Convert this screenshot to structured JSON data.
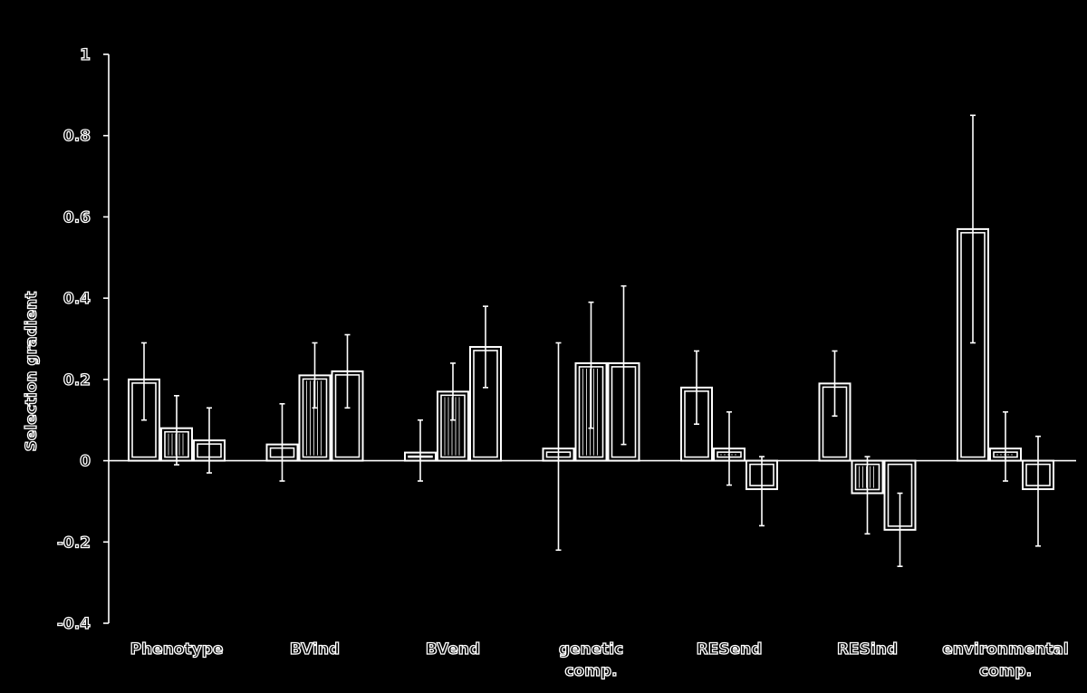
{
  "chart_data": {
    "type": "bar",
    "ylabel": "Selection gradient",
    "xlabel": "",
    "ylim": [
      -0.4,
      1
    ],
    "yticks": [
      "1",
      "0.8",
      "0.6",
      "0.4",
      "0.2",
      "0",
      "-0.2",
      "-0.4"
    ],
    "ytick_values": [
      1,
      0.8,
      0.6,
      0.4,
      0.2,
      0,
      -0.2,
      -0.4
    ],
    "categories": [
      [
        "Phenotype"
      ],
      [
        "BVind"
      ],
      [
        "BVend"
      ],
      [
        "genetic",
        "comp."
      ],
      [
        "RESend"
      ],
      [
        "RESind"
      ],
      [
        "environmental",
        "comp."
      ]
    ],
    "series": [
      {
        "values": [
          0.2,
          0.04,
          0.02,
          0.03,
          0.18,
          0.19,
          0.57
        ],
        "error_low": [
          0.1,
          -0.05,
          -0.05,
          -0.22,
          0.09,
          0.11,
          0.29
        ],
        "error_high": [
          0.29,
          0.14,
          0.1,
          0.29,
          0.27,
          0.27,
          0.85
        ]
      },
      {
        "values": [
          0.08,
          0.21,
          0.17,
          0.24,
          0.03,
          -0.08,
          0.03
        ],
        "error_low": [
          -0.01,
          0.13,
          0.1,
          0.08,
          -0.06,
          -0.18,
          -0.05
        ],
        "error_high": [
          0.16,
          0.29,
          0.24,
          0.39,
          0.12,
          0.01,
          0.12
        ]
      },
      {
        "values": [
          0.05,
          0.22,
          0.28,
          0.24,
          -0.07,
          -0.17,
          -0.07
        ],
        "error_low": [
          -0.03,
          0.13,
          0.18,
          0.04,
          -0.16,
          -0.26,
          -0.21
        ],
        "error_high": [
          0.13,
          0.31,
          0.38,
          0.43,
          0.01,
          -0.08,
          0.06
        ]
      }
    ],
    "grid": false,
    "legend": "none",
    "colors": {
      "background": "#000000",
      "stroke": "#ffffff"
    }
  }
}
